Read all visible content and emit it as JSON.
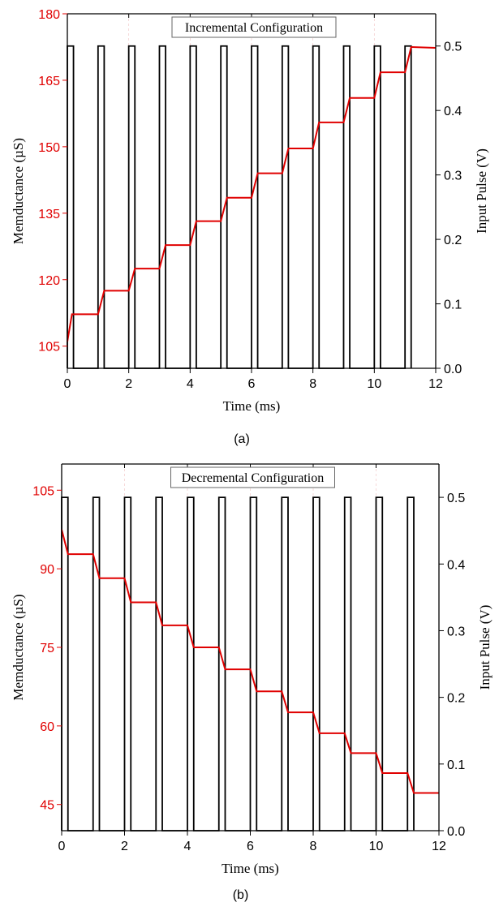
{
  "chart_data": [
    {
      "type": "line",
      "title": "Incremental Configuration",
      "caption": "(a)",
      "xlabel": "Time (ms)",
      "ylabel_left": "Memductance (µS)",
      "ylabel_right": "Input Pulse (V)",
      "xlim": [
        0,
        12
      ],
      "ylim_left": [
        100,
        180
      ],
      "ylim_right": [
        0,
        0.55
      ],
      "x_ticks": [
        "0",
        "2",
        "4",
        "6",
        "8",
        "10",
        "12"
      ],
      "y_left_ticks": [
        "105",
        "120",
        "135",
        "150",
        "165",
        "180"
      ],
      "y_right_ticks": [
        "0.0",
        "0.1",
        "0.2",
        "0.3",
        "0.4",
        "0.5"
      ],
      "colors": {
        "memductance": "#e00000",
        "pulse": "#000000"
      },
      "series": [
        {
          "axis": "left",
          "points": [
            [
              0,
              106
            ],
            [
              0.15,
              112.2
            ],
            [
              1,
              112.2
            ],
            [
              1.2,
              117.5
            ],
            [
              2,
              117.5
            ],
            [
              2.2,
              122.5
            ],
            [
              3,
              122.5
            ],
            [
              3.2,
              127.8
            ],
            [
              4,
              127.8
            ],
            [
              4.2,
              133.2
            ],
            [
              5,
              133.2
            ],
            [
              5.2,
              138.5
            ],
            [
              6,
              138.5
            ],
            [
              6.2,
              144
            ],
            [
              7,
              144
            ],
            [
              7.2,
              149.6
            ],
            [
              8,
              149.6
            ],
            [
              8.2,
              155.5
            ],
            [
              9,
              155.5
            ],
            [
              9.2,
              161
            ],
            [
              10,
              161
            ],
            [
              10.2,
              166.8
            ],
            [
              11,
              166.8
            ],
            [
              11.2,
              172.5
            ],
            [
              12,
              172.3
            ]
          ]
        },
        {
          "axis": "right",
          "pulse_starts": [
            0,
            1,
            2,
            3,
            4,
            5,
            6,
            7,
            8,
            9,
            10,
            11
          ],
          "pulse_width": 0.2,
          "amplitude": 0.5
        }
      ]
    },
    {
      "type": "line",
      "title": "Decremental Configuration",
      "caption": "(b)",
      "xlabel": "Time (ms)",
      "ylabel_left": "Memductance (µS)",
      "ylabel_right": "Input Pulse (V)",
      "xlim": [
        0,
        12
      ],
      "ylim_left": [
        40,
        110
      ],
      "ylim_right": [
        0,
        0.55
      ],
      "x_ticks": [
        "0",
        "2",
        "4",
        "6",
        "8",
        "10",
        "12"
      ],
      "y_left_ticks": [
        "45",
        "60",
        "75",
        "90",
        "105"
      ],
      "y_right_ticks": [
        "0.0",
        "0.1",
        "0.2",
        "0.3",
        "0.4",
        "0.5"
      ],
      "colors": {
        "memductance": "#e00000",
        "pulse": "#000000"
      },
      "series": [
        {
          "axis": "left",
          "points": [
            [
              0,
              97.5
            ],
            [
              0.2,
              92.8
            ],
            [
              1,
              92.8
            ],
            [
              1.2,
              88.2
            ],
            [
              2,
              88.2
            ],
            [
              2.2,
              83.6
            ],
            [
              3,
              83.6
            ],
            [
              3.2,
              79.2
            ],
            [
              4,
              79.2
            ],
            [
              4.2,
              75
            ],
            [
              5,
              75
            ],
            [
              5.2,
              70.8
            ],
            [
              6,
              70.8
            ],
            [
              6.2,
              66.6
            ],
            [
              7,
              66.6
            ],
            [
              7.2,
              62.6
            ],
            [
              8,
              62.6
            ],
            [
              8.2,
              58.6
            ],
            [
              9,
              58.6
            ],
            [
              9.2,
              54.8
            ],
            [
              10,
              54.8
            ],
            [
              10.2,
              51
            ],
            [
              11,
              51
            ],
            [
              11.2,
              47.2
            ],
            [
              12,
              47.2
            ]
          ]
        },
        {
          "axis": "right",
          "pulse_starts": [
            0,
            1,
            2,
            3,
            4,
            5,
            6,
            7,
            8,
            9,
            10,
            11
          ],
          "pulse_width": 0.2,
          "amplitude": 0.5
        }
      ]
    }
  ]
}
